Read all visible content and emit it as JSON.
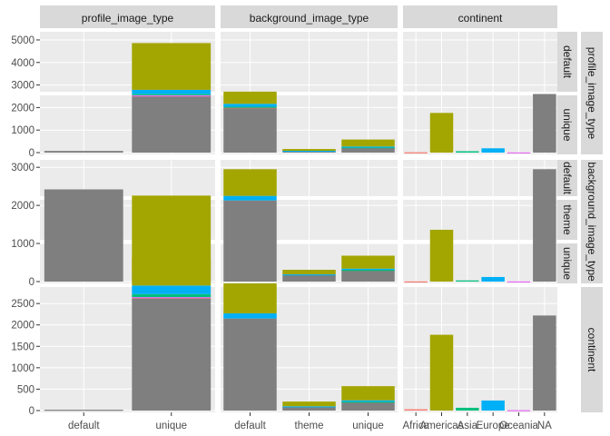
{
  "chart_data": {
    "type": "bar",
    "layout": "matrix-facet",
    "column_variables": [
      "profile_image_type",
      "background_image_type",
      "continent"
    ],
    "row_variables": [
      "profile_image_type",
      "background_image_type",
      "continent"
    ],
    "column_levels": {
      "profile_image_type": [
        "default",
        "unique"
      ],
      "background_image_type": [
        "default",
        "theme",
        "unique"
      ],
      "continent": [
        "Africa",
        "Americas",
        "Asia",
        "Europe",
        "Oceania",
        "NA"
      ]
    },
    "row_levels": {
      "profile_image_type": [
        "default",
        "unique"
      ],
      "background_image_type": [
        "default",
        "theme",
        "unique"
      ],
      "continent": []
    },
    "fill_colors": {
      "Africa": "#F8766D",
      "Americas": "#A3A500",
      "Asia": "#00BF7D",
      "Europe": "#00B0F6",
      "Oceania": "#E76BF3",
      "NA": "#7F7F7F"
    },
    "stack_order": [
      "Americas",
      "Europe",
      "Asia",
      "Oceania",
      "Africa",
      "NA"
    ],
    "y_ticks": {
      "profile_image_type": [
        0,
        1000,
        2000,
        3000,
        4000,
        5000
      ],
      "background_image_type": [
        0,
        1000,
        2000,
        3000
      ],
      "continent": [
        0,
        500,
        1000,
        1500,
        2000,
        2500
      ]
    },
    "panels": {
      "profile_image_type|profile_image_type": {
        "bars": [
          {
            "x": "default",
            "segments": {
              "NA": 75
            }
          },
          {
            "x": "unique",
            "segments": {
              "NA": 2520,
              "Oceania": 10,
              "Africa": 15,
              "Asia": 60,
              "Europe": 180,
              "Americas": 2075
            }
          }
        ]
      },
      "profile_image_type|background_image_type": {
        "bars": [
          {
            "x": "default",
            "segments": {
              "NA": 2000,
              "Africa": 10,
              "Asia": 25,
              "Europe": 130,
              "Americas": 540
            }
          },
          {
            "x": "theme",
            "segments": {
              "NA": 70,
              "Europe": 10,
              "Americas": 80
            }
          },
          {
            "x": "unique",
            "segments": {
              "NA": 230,
              "Asia": 10,
              "Europe": 30,
              "Americas": 310
            }
          }
        ]
      },
      "profile_image_type|continent": {
        "bars": [
          {
            "x": "Africa",
            "segments": {
              "Africa": 15
            }
          },
          {
            "x": "Americas",
            "segments": {
              "Americas": 1760
            }
          },
          {
            "x": "Asia",
            "segments": {
              "Asia": 60
            }
          },
          {
            "x": "Europe",
            "segments": {
              "Europe": 190
            }
          },
          {
            "x": "Oceania",
            "segments": {
              "Oceania": 10
            }
          },
          {
            "x": "NA",
            "segments": {
              "NA": 2600
            }
          }
        ]
      },
      "background_image_type|profile_image_type": {
        "bars": [
          {
            "x": "default",
            "segments": {
              "NA": 2420
            }
          },
          {
            "x": "unique",
            "segments": {
              "NA": 290,
              "Americas": 305,
              "Africa": 15
            }
          }
        ]
      },
      "background_image_type|background_image_type": {
        "bars": [
          {
            "x": "default",
            "segments": {
              "NA": 2130,
              "Europe": 120,
              "Americas": 700
            }
          },
          {
            "x": "theme",
            "segments": {
              "NA": 180,
              "Americas": 120,
              "Europe": 10
            }
          },
          {
            "x": "unique",
            "segments": {
              "NA": 300,
              "Asia": 10,
              "Europe": 30,
              "Americas": 340
            }
          }
        ]
      },
      "background_image_type|continent": {
        "bars": [
          {
            "x": "Africa",
            "segments": {
              "Africa": 5
            }
          },
          {
            "x": "Americas",
            "segments": {
              "Americas": 1360
            }
          },
          {
            "x": "Asia",
            "segments": {
              "Asia": 30
            }
          },
          {
            "x": "Europe",
            "segments": {
              "Europe": 120
            }
          },
          {
            "x": "Oceania",
            "segments": {
              "Oceania": 5
            }
          },
          {
            "x": "NA",
            "segments": {
              "NA": 2950
            }
          }
        ]
      },
      "continent|profile_image_type": {
        "bars": [
          {
            "x": "default",
            "segments": {
              "NA": 20
            }
          },
          {
            "x": "unique",
            "segments": {
              "NA": 2620,
              "Oceania": 10,
              "Africa": 20,
              "Asia": 70,
              "Europe": 200,
              "Americas": 2100
            }
          }
        ]
      },
      "continent|background_image_type": {
        "bars": [
          {
            "x": "default",
            "segments": {
              "NA": 2150,
              "Europe": 120,
              "Americas": 700
            }
          },
          {
            "x": "theme",
            "segments": {
              "NA": 90,
              "Americas": 110,
              "Europe": 10
            }
          },
          {
            "x": "unique",
            "segments": {
              "NA": 200,
              "Asia": 10,
              "Europe": 30,
              "Americas": 330
            }
          }
        ]
      },
      "continent|continent": {
        "bars": [
          {
            "x": "Africa",
            "segments": {
              "Africa": 30
            }
          },
          {
            "x": "Americas",
            "segments": {
              "Americas": 1770
            }
          },
          {
            "x": "Asia",
            "segments": {
              "Asia": 65
            }
          },
          {
            "x": "Europe",
            "segments": {
              "Europe": 235
            }
          },
          {
            "x": "Oceania",
            "segments": {
              "Oceania": 10
            }
          },
          {
            "x": "NA",
            "segments": {
              "NA": 2220
            }
          }
        ]
      }
    },
    "grid": true,
    "legend": "none",
    "title": "",
    "xlabel": "",
    "ylabel": ""
  }
}
